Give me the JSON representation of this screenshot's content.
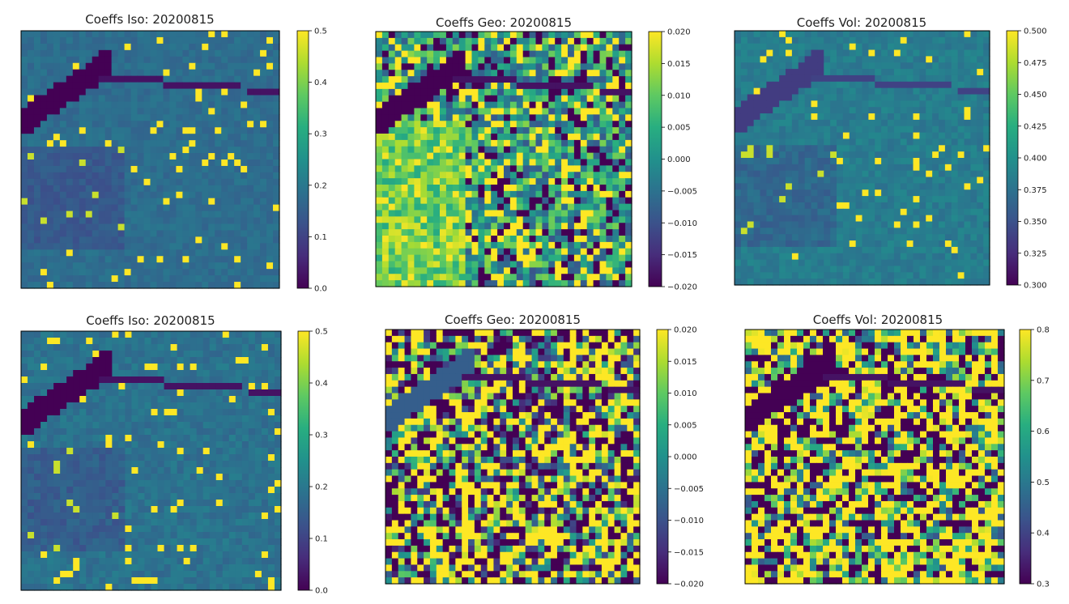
{
  "chart_data": [
    {
      "type": "heatmap",
      "title": "Coeffs Iso: 20200815",
      "colormap": "viridis",
      "vlim": [
        0.0,
        0.5
      ],
      "colorbar_ticks": [
        "0.0",
        "0.1",
        "0.2",
        "0.3",
        "0.4",
        "0.5"
      ],
      "pattern": "iso",
      "level": 0.36,
      "spread": 0.04
    },
    {
      "type": "heatmap",
      "title": "Coeffs Geo: 20200815",
      "colormap": "viridis",
      "vlim": [
        -0.02,
        0.02
      ],
      "colorbar_ticks": [
        "−0.020",
        "−0.015",
        "−0.010",
        "−0.005",
        "0.000",
        "0.005",
        "0.010",
        "0.015",
        "0.020"
      ],
      "pattern": "geo",
      "level": 0.55,
      "spread": 0.28
    },
    {
      "type": "heatmap",
      "title": "Coeffs Vol: 20200815",
      "colormap": "viridis",
      "vlim": [
        0.3,
        0.5
      ],
      "colorbar_ticks": [
        "0.300",
        "0.325",
        "0.350",
        "0.375",
        "0.400",
        "0.425",
        "0.450",
        "0.475",
        "0.500"
      ],
      "pattern": "vol",
      "level": 0.42,
      "spread": 0.05
    },
    {
      "type": "heatmap",
      "title": "Coeffs Iso: 20200815",
      "colormap": "viridis",
      "vlim": [
        0.0,
        0.5
      ],
      "colorbar_ticks": [
        "0.0",
        "0.1",
        "0.2",
        "0.3",
        "0.4",
        "0.5"
      ],
      "pattern": "iso",
      "level": 0.38,
      "spread": 0.05
    },
    {
      "type": "heatmap",
      "title": "Coeffs Geo: 20200815",
      "colormap": "viridis",
      "vlim": [
        -0.02,
        0.02
      ],
      "colorbar_ticks": [
        "−0.020",
        "−0.015",
        "−0.010",
        "−0.005",
        "0.000",
        "0.005",
        "0.010",
        "0.015",
        "0.020"
      ],
      "pattern": "geo2",
      "level": 0.5,
      "spread": 0.45
    },
    {
      "type": "heatmap",
      "title": "Coeffs Vol: 20200815",
      "colormap": "viridis",
      "vlim": [
        0.3,
        0.8
      ],
      "colorbar_ticks": [
        "0.3",
        "0.4",
        "0.5",
        "0.6",
        "0.7",
        "0.8"
      ],
      "pattern": "vol2",
      "level": 0.7,
      "spread": 0.45
    }
  ]
}
